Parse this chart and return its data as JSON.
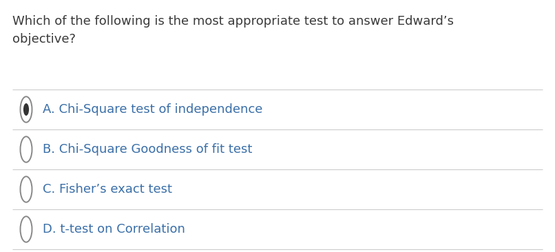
{
  "question_line1": "Which of the following is the most appropriate test to answer Edward’s",
  "question_line2": "objective?",
  "options": [
    {
      "label": "A. Chi-Square test of independence",
      "selected": true
    },
    {
      "label": "B. Chi-Square Goodness of fit test",
      "selected": false
    },
    {
      "label": "C. Fisher’s exact test",
      "selected": false
    },
    {
      "label": "D. t-test on Correlation",
      "selected": false
    }
  ],
  "background_color": "#ffffff",
  "question_text_color": "#3a3a3a",
  "option_text_color": "#3a6fa8",
  "question_fontsize": 13.0,
  "option_fontsize": 13.0,
  "separator_color": "#cccccc",
  "radio_edge_color": "#888888",
  "radio_fill_color": "#333333",
  "radio_linewidth": 1.4,
  "fig_width": 8.06,
  "fig_height": 3.66,
  "dpi": 100
}
